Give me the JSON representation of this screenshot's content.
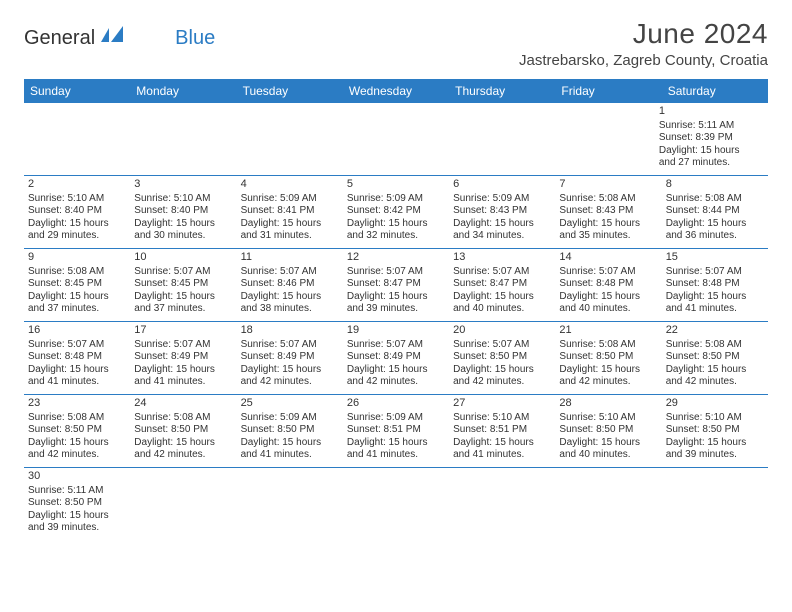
{
  "logo": {
    "text_general": "General",
    "text_blue": "Blue"
  },
  "header": {
    "month_title": "June 2024",
    "location": "Jastrebarsko, Zagreb County, Croatia"
  },
  "colors": {
    "header_bg": "#2b7cc4",
    "header_text": "#ffffff",
    "border": "#2b7cc4",
    "text": "#333333",
    "title_text": "#444444"
  },
  "typography": {
    "title_fontsize": 28,
    "location_fontsize": 15,
    "day_header_fontsize": 12,
    "cell_fontsize": 10
  },
  "day_headers": [
    "Sunday",
    "Monday",
    "Tuesday",
    "Wednesday",
    "Thursday",
    "Friday",
    "Saturday"
  ],
  "weeks": [
    [
      null,
      null,
      null,
      null,
      null,
      null,
      {
        "n": "1",
        "sr": "Sunrise: 5:11 AM",
        "ss": "Sunset: 8:39 PM",
        "d1": "Daylight: 15 hours",
        "d2": "and 27 minutes."
      }
    ],
    [
      {
        "n": "2",
        "sr": "Sunrise: 5:10 AM",
        "ss": "Sunset: 8:40 PM",
        "d1": "Daylight: 15 hours",
        "d2": "and 29 minutes."
      },
      {
        "n": "3",
        "sr": "Sunrise: 5:10 AM",
        "ss": "Sunset: 8:40 PM",
        "d1": "Daylight: 15 hours",
        "d2": "and 30 minutes."
      },
      {
        "n": "4",
        "sr": "Sunrise: 5:09 AM",
        "ss": "Sunset: 8:41 PM",
        "d1": "Daylight: 15 hours",
        "d2": "and 31 minutes."
      },
      {
        "n": "5",
        "sr": "Sunrise: 5:09 AM",
        "ss": "Sunset: 8:42 PM",
        "d1": "Daylight: 15 hours",
        "d2": "and 32 minutes."
      },
      {
        "n": "6",
        "sr": "Sunrise: 5:09 AM",
        "ss": "Sunset: 8:43 PM",
        "d1": "Daylight: 15 hours",
        "d2": "and 34 minutes."
      },
      {
        "n": "7",
        "sr": "Sunrise: 5:08 AM",
        "ss": "Sunset: 8:43 PM",
        "d1": "Daylight: 15 hours",
        "d2": "and 35 minutes."
      },
      {
        "n": "8",
        "sr": "Sunrise: 5:08 AM",
        "ss": "Sunset: 8:44 PM",
        "d1": "Daylight: 15 hours",
        "d2": "and 36 minutes."
      }
    ],
    [
      {
        "n": "9",
        "sr": "Sunrise: 5:08 AM",
        "ss": "Sunset: 8:45 PM",
        "d1": "Daylight: 15 hours",
        "d2": "and 37 minutes."
      },
      {
        "n": "10",
        "sr": "Sunrise: 5:07 AM",
        "ss": "Sunset: 8:45 PM",
        "d1": "Daylight: 15 hours",
        "d2": "and 37 minutes."
      },
      {
        "n": "11",
        "sr": "Sunrise: 5:07 AM",
        "ss": "Sunset: 8:46 PM",
        "d1": "Daylight: 15 hours",
        "d2": "and 38 minutes."
      },
      {
        "n": "12",
        "sr": "Sunrise: 5:07 AM",
        "ss": "Sunset: 8:47 PM",
        "d1": "Daylight: 15 hours",
        "d2": "and 39 minutes."
      },
      {
        "n": "13",
        "sr": "Sunrise: 5:07 AM",
        "ss": "Sunset: 8:47 PM",
        "d1": "Daylight: 15 hours",
        "d2": "and 40 minutes."
      },
      {
        "n": "14",
        "sr": "Sunrise: 5:07 AM",
        "ss": "Sunset: 8:48 PM",
        "d1": "Daylight: 15 hours",
        "d2": "and 40 minutes."
      },
      {
        "n": "15",
        "sr": "Sunrise: 5:07 AM",
        "ss": "Sunset: 8:48 PM",
        "d1": "Daylight: 15 hours",
        "d2": "and 41 minutes."
      }
    ],
    [
      {
        "n": "16",
        "sr": "Sunrise: 5:07 AM",
        "ss": "Sunset: 8:48 PM",
        "d1": "Daylight: 15 hours",
        "d2": "and 41 minutes."
      },
      {
        "n": "17",
        "sr": "Sunrise: 5:07 AM",
        "ss": "Sunset: 8:49 PM",
        "d1": "Daylight: 15 hours",
        "d2": "and 41 minutes."
      },
      {
        "n": "18",
        "sr": "Sunrise: 5:07 AM",
        "ss": "Sunset: 8:49 PM",
        "d1": "Daylight: 15 hours",
        "d2": "and 42 minutes."
      },
      {
        "n": "19",
        "sr": "Sunrise: 5:07 AM",
        "ss": "Sunset: 8:49 PM",
        "d1": "Daylight: 15 hours",
        "d2": "and 42 minutes."
      },
      {
        "n": "20",
        "sr": "Sunrise: 5:07 AM",
        "ss": "Sunset: 8:50 PM",
        "d1": "Daylight: 15 hours",
        "d2": "and 42 minutes."
      },
      {
        "n": "21",
        "sr": "Sunrise: 5:08 AM",
        "ss": "Sunset: 8:50 PM",
        "d1": "Daylight: 15 hours",
        "d2": "and 42 minutes."
      },
      {
        "n": "22",
        "sr": "Sunrise: 5:08 AM",
        "ss": "Sunset: 8:50 PM",
        "d1": "Daylight: 15 hours",
        "d2": "and 42 minutes."
      }
    ],
    [
      {
        "n": "23",
        "sr": "Sunrise: 5:08 AM",
        "ss": "Sunset: 8:50 PM",
        "d1": "Daylight: 15 hours",
        "d2": "and 42 minutes."
      },
      {
        "n": "24",
        "sr": "Sunrise: 5:08 AM",
        "ss": "Sunset: 8:50 PM",
        "d1": "Daylight: 15 hours",
        "d2": "and 42 minutes."
      },
      {
        "n": "25",
        "sr": "Sunrise: 5:09 AM",
        "ss": "Sunset: 8:50 PM",
        "d1": "Daylight: 15 hours",
        "d2": "and 41 minutes."
      },
      {
        "n": "26",
        "sr": "Sunrise: 5:09 AM",
        "ss": "Sunset: 8:51 PM",
        "d1": "Daylight: 15 hours",
        "d2": "and 41 minutes."
      },
      {
        "n": "27",
        "sr": "Sunrise: 5:10 AM",
        "ss": "Sunset: 8:51 PM",
        "d1": "Daylight: 15 hours",
        "d2": "and 41 minutes."
      },
      {
        "n": "28",
        "sr": "Sunrise: 5:10 AM",
        "ss": "Sunset: 8:50 PM",
        "d1": "Daylight: 15 hours",
        "d2": "and 40 minutes."
      },
      {
        "n": "29",
        "sr": "Sunrise: 5:10 AM",
        "ss": "Sunset: 8:50 PM",
        "d1": "Daylight: 15 hours",
        "d2": "and 39 minutes."
      }
    ],
    [
      {
        "n": "30",
        "sr": "Sunrise: 5:11 AM",
        "ss": "Sunset: 8:50 PM",
        "d1": "Daylight: 15 hours",
        "d2": "and 39 minutes."
      },
      null,
      null,
      null,
      null,
      null,
      null
    ]
  ]
}
